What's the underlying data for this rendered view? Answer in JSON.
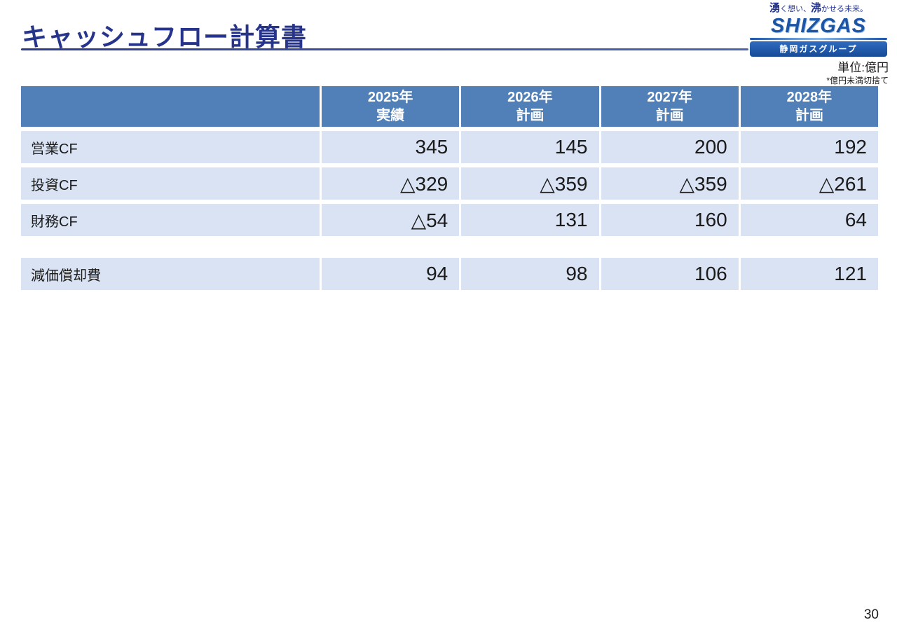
{
  "slide": {
    "title": "キャッシュフロー計算書",
    "unit_note": "単位:億円",
    "rounding_note": "*億円未満切捨て",
    "page_number": "30"
  },
  "logo": {
    "tagline": {
      "big1": "湧",
      "small1": "く想い、",
      "big2": "沸",
      "small2": "かせる未来。"
    },
    "brand": "SHIZGAS",
    "group_label": "静岡ガスグループ"
  },
  "table": {
    "columns": [
      {
        "year": "2025年",
        "type": "実績"
      },
      {
        "year": "2026年",
        "type": "計画"
      },
      {
        "year": "2027年",
        "type": "計画"
      },
      {
        "year": "2028年",
        "type": "計画"
      }
    ],
    "rows": [
      {
        "label": "営業CF",
        "values": [
          "345",
          "145",
          "200",
          "192"
        ]
      },
      {
        "label": "投資CF",
        "values": [
          "△329",
          "△359",
          "△359",
          "△261"
        ]
      },
      {
        "label": "財務CF",
        "values": [
          "△54",
          "131",
          "160",
          "64"
        ]
      }
    ],
    "depreciation_row": {
      "label": "減価償却費",
      "values": [
        "94",
        "98",
        "106",
        "121"
      ]
    }
  },
  "colors": {
    "header_blue": "#5180b9",
    "row_blue": "#dae3f3",
    "title_navy": "#27348b"
  }
}
